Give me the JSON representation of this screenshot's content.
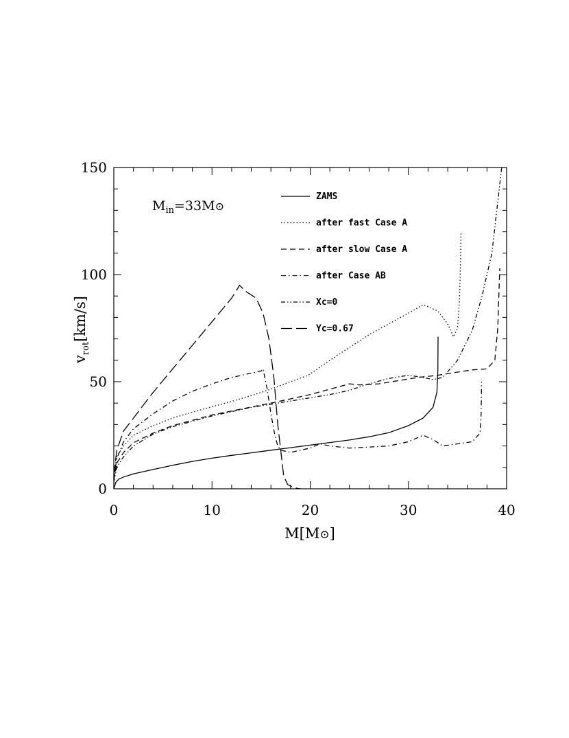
{
  "chart_data": {
    "type": "line",
    "xlabel": "M[M⊙]",
    "ylabel": "v_rot[km/s]",
    "xlim": [
      0,
      40
    ],
    "ylim": [
      0,
      150
    ],
    "xticks": [
      0,
      10,
      20,
      30,
      40
    ],
    "yticks": [
      0,
      50,
      100,
      150
    ],
    "x_minor_step": 2,
    "y_minor_step": 10,
    "grid": false,
    "legend_position": "top-right",
    "annotation": "M_in=33M⊙",
    "series": [
      {
        "name": "ZAMS",
        "style": "solid",
        "points": [
          [
            0,
            0
          ],
          [
            0.2,
            3
          ],
          [
            0.5,
            4.5
          ],
          [
            1,
            5.5
          ],
          [
            2,
            7
          ],
          [
            4,
            9
          ],
          [
            6,
            11
          ],
          [
            8,
            12.8
          ],
          [
            10,
            14.3
          ],
          [
            12,
            15.6
          ],
          [
            14,
            16.8
          ],
          [
            16,
            18
          ],
          [
            18,
            19.2
          ],
          [
            20,
            20.4
          ],
          [
            22,
            21.6
          ],
          [
            24,
            22.8
          ],
          [
            26,
            24.3
          ],
          [
            28,
            26.2
          ],
          [
            30,
            29.5
          ],
          [
            31.5,
            33
          ],
          [
            32.5,
            38
          ],
          [
            32.9,
            45
          ],
          [
            33,
            55
          ],
          [
            33.02,
            71
          ]
        ]
      },
      {
        "name": "after fast Case A",
        "style": "dotted",
        "points": [
          [
            0,
            5
          ],
          [
            0.3,
            15
          ],
          [
            1,
            20
          ],
          [
            2,
            25
          ],
          [
            4,
            29.5
          ],
          [
            6,
            33
          ],
          [
            8,
            35.8
          ],
          [
            10,
            38.3
          ],
          [
            12,
            40.8
          ],
          [
            14,
            43.5
          ],
          [
            16,
            46.5
          ],
          [
            18,
            50
          ],
          [
            19.8,
            53
          ],
          [
            22,
            60
          ],
          [
            24,
            66
          ],
          [
            26,
            72
          ],
          [
            28,
            77
          ],
          [
            30,
            82
          ],
          [
            31.5,
            86
          ],
          [
            33,
            83
          ],
          [
            34,
            77
          ],
          [
            34.6,
            71
          ],
          [
            35,
            75
          ],
          [
            35.2,
            88
          ],
          [
            35.3,
            105
          ],
          [
            35.35,
            120
          ]
        ]
      },
      {
        "name": "after slow Case A",
        "style": "dashed",
        "points": [
          [
            0,
            4
          ],
          [
            0.3,
            12
          ],
          [
            1,
            17
          ],
          [
            2,
            21.5
          ],
          [
            4,
            26
          ],
          [
            6,
            29.5
          ],
          [
            8,
            32
          ],
          [
            10,
            34.5
          ],
          [
            12,
            36.3
          ],
          [
            14,
            38.2
          ],
          [
            16,
            40
          ],
          [
            18,
            42
          ],
          [
            20,
            44
          ],
          [
            22,
            46.5
          ],
          [
            24,
            49
          ],
          [
            25,
            48.5
          ],
          [
            27,
            49
          ],
          [
            29,
            50.5
          ],
          [
            31,
            52
          ],
          [
            33,
            53
          ],
          [
            35,
            54.5
          ],
          [
            36.5,
            55.5
          ],
          [
            38,
            56
          ],
          [
            38.8,
            60
          ],
          [
            39.1,
            75
          ],
          [
            39.3,
            103
          ]
        ]
      },
      {
        "name": "after Case AB",
        "style": "dashdot",
        "points": [
          [
            0,
            5
          ],
          [
            0.3,
            14
          ],
          [
            1,
            22
          ],
          [
            2,
            28
          ],
          [
            4,
            35
          ],
          [
            6,
            41
          ],
          [
            8,
            45.5
          ],
          [
            10,
            49
          ],
          [
            12,
            52
          ],
          [
            14,
            54
          ],
          [
            15,
            55
          ],
          [
            15.2,
            56
          ],
          [
            15.6,
            47
          ],
          [
            16,
            35
          ],
          [
            16.4,
            25
          ],
          [
            16.7,
            20
          ],
          [
            17,
            18
          ],
          [
            18,
            17
          ],
          [
            19,
            18
          ],
          [
            20,
            19
          ],
          [
            21,
            21
          ],
          [
            22,
            20
          ],
          [
            24,
            19
          ],
          [
            26,
            19.5
          ],
          [
            28,
            20
          ],
          [
            30,
            22
          ],
          [
            31.5,
            25
          ],
          [
            32.5,
            23
          ],
          [
            33.5,
            20
          ],
          [
            35,
            21
          ],
          [
            36.5,
            22
          ],
          [
            37.3,
            26
          ],
          [
            37.4,
            35
          ],
          [
            37.45,
            50
          ]
        ]
      },
      {
        "name": "Xc=0",
        "style": "dashdotdot",
        "points": [
          [
            0,
            3
          ],
          [
            0.3,
            10
          ],
          [
            1,
            15
          ],
          [
            2,
            20
          ],
          [
            4,
            25.5
          ],
          [
            6,
            29
          ],
          [
            8,
            31.5
          ],
          [
            10,
            34
          ],
          [
            12,
            36
          ],
          [
            14,
            38
          ],
          [
            16,
            39.5
          ],
          [
            18,
            41
          ],
          [
            20,
            42.5
          ],
          [
            22,
            44
          ],
          [
            24,
            46
          ],
          [
            26,
            49
          ],
          [
            28,
            51.5
          ],
          [
            30,
            53
          ],
          [
            31.5,
            52
          ],
          [
            32.5,
            51
          ],
          [
            33.5,
            52
          ],
          [
            35,
            60
          ],
          [
            36.5,
            74
          ],
          [
            37.5,
            90
          ],
          [
            38.5,
            110
          ],
          [
            39.5,
            150
          ]
        ]
      },
      {
        "name": "Yc=0.67",
        "style": "longdash",
        "points": [
          [
            0,
            6
          ],
          [
            0.3,
            18
          ],
          [
            1,
            27
          ],
          [
            2,
            33
          ],
          [
            4,
            45
          ],
          [
            6,
            56
          ],
          [
            8,
            67
          ],
          [
            10,
            78
          ],
          [
            12,
            89
          ],
          [
            12.8,
            95
          ],
          [
            13.5,
            92
          ],
          [
            14.5,
            89
          ],
          [
            15.2,
            82
          ],
          [
            15.8,
            70
          ],
          [
            16.3,
            52
          ],
          [
            16.7,
            30
          ],
          [
            17,
            18
          ],
          [
            17.3,
            6
          ],
          [
            17.7,
            2
          ],
          [
            18.2,
            0.8
          ],
          [
            18.7,
            0.2
          ],
          [
            19,
            0
          ]
        ]
      }
    ]
  }
}
